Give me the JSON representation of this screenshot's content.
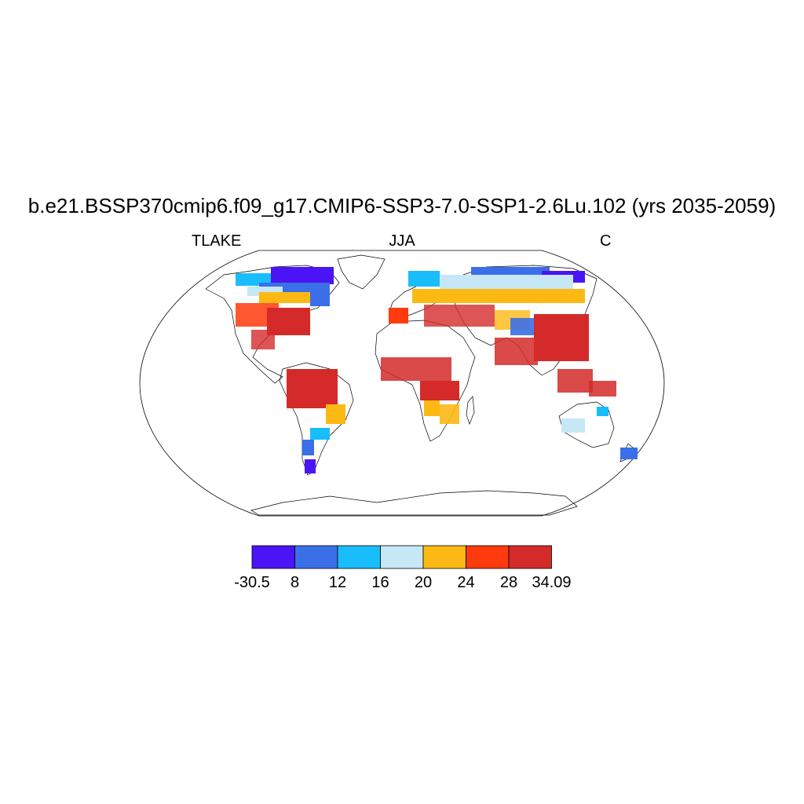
{
  "title": "b.e21.BSSP370cmip6.f09_g17.CMIP6-SSP3-7.0-SSP1-2.6Lu.102 (yrs 2035-2059)",
  "left_label": "TLAKE",
  "center_label": "JJA",
  "right_label": "C",
  "colorbar": {
    "colors": [
      "#4a14f5",
      "#3a6fe8",
      "#19bdfa",
      "#c6e7f6",
      "#fdb913",
      "#ff3a0c",
      "#d42a29"
    ],
    "labels": [
      "-30.5",
      "8",
      "12",
      "16",
      "20",
      "24",
      "28",
      "34.09"
    ]
  }
}
